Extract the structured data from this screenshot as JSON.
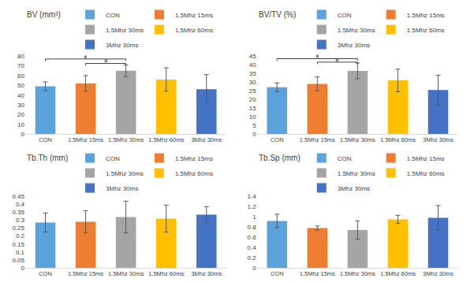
{
  "chart_data": [
    {
      "type": "bar",
      "title": "BV (mm³)",
      "categories": [
        "CON",
        "1.5Mhz 15ms",
        "1.5Mhz 30ms",
        "1.5Mhz 60ms",
        "3Mhz 30ms"
      ],
      "values": [
        49,
        52,
        65,
        56,
        46
      ],
      "errors": [
        4.5,
        8,
        6,
        12,
        15
      ],
      "colors": [
        "#5ba3dc",
        "#ed7d31",
        "#a5a5a5",
        "#ffc000",
        "#4472c4"
      ],
      "ylim": [
        0,
        80
      ],
      "yticks": [
        0,
        10,
        20,
        30,
        40,
        50,
        60,
        70,
        80
      ],
      "grid": false,
      "legend": "top right",
      "annotations": [
        {
          "from": "CON",
          "to": "1.5Mhz 30ms",
          "y": 77,
          "text": "*"
        },
        {
          "from": "1.5Mhz 15ms",
          "to": "1.5Mhz 30ms",
          "y": 72.5,
          "text": "*"
        }
      ]
    },
    {
      "type": "bar",
      "title": "BV/TV (%)",
      "categories": [
        "CON",
        "1.5Mhz 15ms",
        "1.5Mhz 30ms",
        "1.5Mhz 60ms",
        "3Mhz 30ms"
      ],
      "values": [
        27,
        29,
        36.5,
        31,
        25.5
      ],
      "errors": [
        2.5,
        4,
        4.5,
        6.5,
        8.5
      ],
      "colors": [
        "#5ba3dc",
        "#ed7d31",
        "#a5a5a5",
        "#ffc000",
        "#4472c4"
      ],
      "ylim": [
        0,
        45
      ],
      "yticks": [
        0,
        5,
        10,
        15,
        20,
        25,
        30,
        35,
        40,
        45
      ],
      "grid": false,
      "legend": "top right",
      "annotations": [
        {
          "from": "CON",
          "to": "1.5Mhz 30ms",
          "y": 43.5,
          "text": "*"
        },
        {
          "from": "1.5Mhz 15ms",
          "to": "1.5Mhz 30ms",
          "y": 41.5,
          "text": "*"
        }
      ]
    },
    {
      "type": "bar",
      "title": "Tb.Th (mm)",
      "categories": [
        "CON",
        "1.5Mhz 15ms",
        "1.5Mhz 30ms",
        "1.5Mhz 60ms",
        "3Mhz 30ms"
      ],
      "values": [
        0.285,
        0.29,
        0.32,
        0.31,
        0.335
      ],
      "errors": [
        0.06,
        0.07,
        0.1,
        0.085,
        0.05
      ],
      "colors": [
        "#5ba3dc",
        "#ed7d31",
        "#a5a5a5",
        "#ffc000",
        "#4472c4"
      ],
      "ylim": [
        0,
        0.45
      ],
      "yticks": [
        0,
        0.05,
        0.1,
        0.15,
        0.2,
        0.25,
        0.3,
        0.35,
        0.4,
        0.45
      ],
      "grid": false,
      "legend": "top right"
    },
    {
      "type": "bar",
      "title": "Tb.Sp (mm)",
      "categories": [
        "CON",
        "1.5Mhz 15ms",
        "1.5Mhz 30ms",
        "1.5Mhz 60ms",
        "3Mhz 30ms"
      ],
      "values": [
        0.92,
        0.78,
        0.74,
        0.95,
        0.98
      ],
      "errors": [
        0.13,
        0.04,
        0.18,
        0.08,
        0.24
      ],
      "colors": [
        "#5ba3dc",
        "#ed7d31",
        "#a5a5a5",
        "#ffc000",
        "#4472c4"
      ],
      "ylim": [
        0,
        1.4
      ],
      "yticks": [
        0,
        0.2,
        0.4,
        0.6,
        0.8,
        1,
        1.2,
        1.4
      ],
      "grid": false,
      "legend": "top right"
    }
  ]
}
